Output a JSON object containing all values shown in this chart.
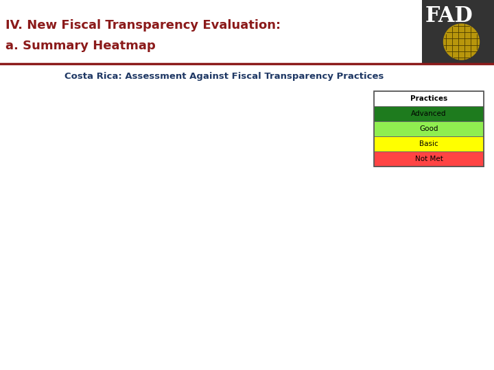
{
  "title_line1": "IV. New Fiscal Transparency Evaluation:",
  "title_line2": "a. Summary Heatmap",
  "subtitle": "Costa Rica: Assessment Against Fiscal Transparency Practices",
  "title_color": "#8B1A1A",
  "subtitle_color": "#1F3864",
  "background_color": "#FFFFFF",
  "divider_color": "#8B1A1A",
  "legend_labels": [
    "Practices",
    "Advanced",
    "Good",
    "Basic",
    "Not Met"
  ],
  "legend_colors": [
    "#FFFFFF",
    "#1E7B1E",
    "#90EE50",
    "#FFFF00",
    "#FF4444"
  ],
  "legend_text_colors": [
    "#000000",
    "#000000",
    "#000000",
    "#000000",
    "#000000"
  ],
  "title_fontsize": 13,
  "subtitle_fontsize": 9.5,
  "legend_fontsize": 7.5
}
